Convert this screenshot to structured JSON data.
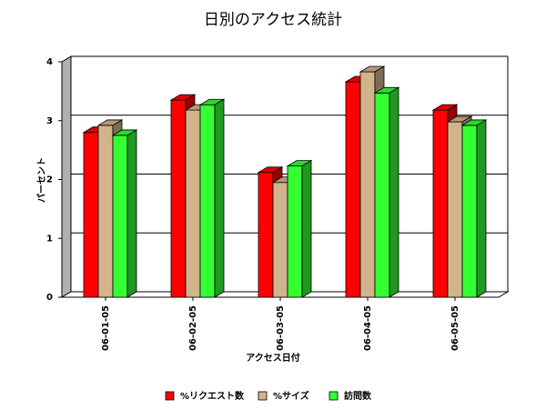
{
  "chart_data": {
    "type": "bar3d",
    "title": "日別のアクセス統計",
    "x_label": "アクセス日付",
    "y_label": "パーセント",
    "categories": [
      "06-01-05",
      "06-02-05",
      "06-03-05",
      "06-04-05",
      "06-05-05"
    ],
    "series": [
      {
        "name": "%リクエスト数",
        "color": "#ff0000",
        "values": [
          2.8,
          3.35,
          2.12,
          3.66,
          3.18
        ]
      },
      {
        "name": "%サイズ",
        "color": "#d2b48c",
        "values": [
          2.92,
          3.18,
          1.95,
          3.83,
          2.98
        ]
      },
      {
        "name": "訪問数",
        "color": "#33ff33",
        "values": [
          2.75,
          3.27,
          2.23,
          3.47,
          2.92
        ]
      }
    ],
    "ylim": [
      0,
      4
    ],
    "yticks": [
      0,
      1,
      2,
      3,
      4
    ],
    "grid": true
  }
}
